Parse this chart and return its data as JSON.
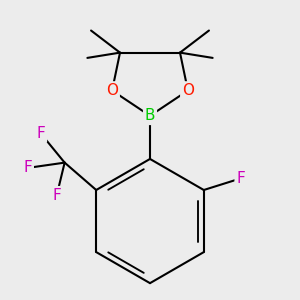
{
  "background_color": "#ececec",
  "bond_color": "#000000",
  "bond_width": 1.5,
  "atom_colors": {
    "B": "#00cc00",
    "O": "#ff1a00",
    "F": "#cc00bb",
    "C": "#000000"
  },
  "font_size_atom": 11,
  "font_size_methyl": 9
}
